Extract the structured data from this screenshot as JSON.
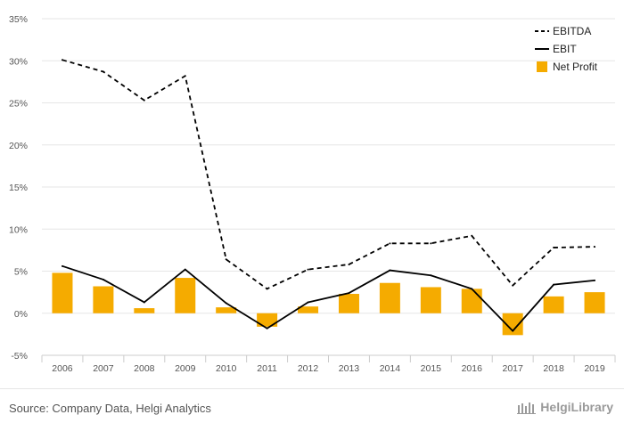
{
  "chart_data": {
    "type": "bar",
    "categories": [
      "2006",
      "2007",
      "2008",
      "2009",
      "2010",
      "2011",
      "2012",
      "2013",
      "2014",
      "2015",
      "2016",
      "2017",
      "2018",
      "2019"
    ],
    "series": [
      {
        "name": "EBITDA",
        "type": "line",
        "style": "dashed",
        "color": "#000000",
        "values": [
          30.1,
          28.7,
          25.3,
          28.2,
          6.4,
          2.9,
          5.2,
          5.8,
          8.3,
          8.3,
          9.2,
          3.3,
          7.8,
          7.9
        ]
      },
      {
        "name": "EBIT",
        "type": "line",
        "style": "solid",
        "color": "#000000",
        "values": [
          5.6,
          4.0,
          1.3,
          5.2,
          1.2,
          -1.8,
          1.3,
          2.4,
          5.1,
          4.5,
          2.9,
          -2.1,
          3.4,
          3.9
        ]
      },
      {
        "name": "Net Profit",
        "type": "bar",
        "color": "#f5ab00",
        "values": [
          4.8,
          3.2,
          0.6,
          4.2,
          0.7,
          -1.6,
          0.8,
          2.3,
          3.6,
          3.1,
          2.9,
          -2.6,
          2.0,
          2.5
        ]
      }
    ],
    "y_ticks": [
      "-5%",
      "0%",
      "5%",
      "10%",
      "15%",
      "20%",
      "25%",
      "30%",
      "35%"
    ],
    "ylim": [
      -5,
      35
    ],
    "grid": true,
    "legend_position": "top-right"
  },
  "footer": {
    "source": "Source: Company Data, Helgi Analytics",
    "brand": "HelgiLibrary"
  },
  "colors": {
    "bar": "#f5ab00",
    "grid": "#e6e6e6",
    "text": "#555555"
  }
}
